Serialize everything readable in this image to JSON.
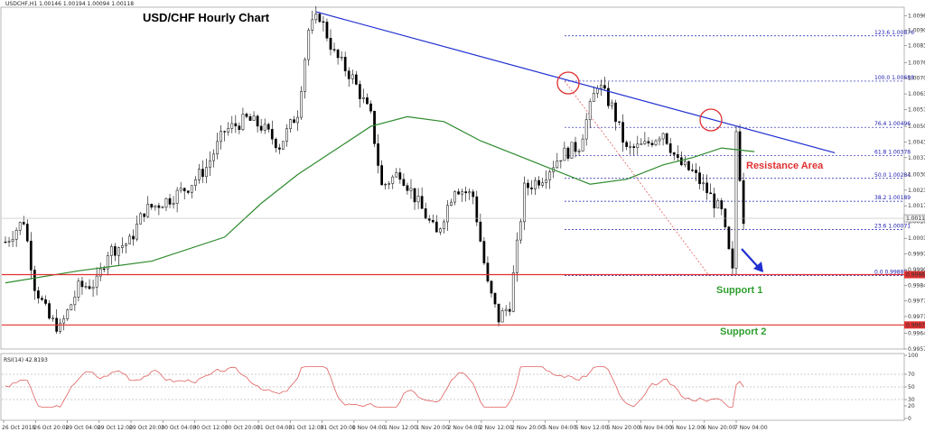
{
  "header": {
    "symbol_line": "USDCHF,H1  1.00146 1.00194 1.00094 1.00118"
  },
  "chart_data": {
    "type": "candlestick",
    "title": "USD/CHF Hourly Chart",
    "symbol": "USDCHF",
    "timeframe": "H1",
    "ohlc_header": {
      "open": 1.00146,
      "high": 1.00194,
      "low": 1.00094,
      "close": 1.00118
    },
    "y_ticks": [
      "1.00960",
      "1.00900",
      "1.00835",
      "1.00765",
      "1.00700",
      "1.00635",
      "1.00570",
      "1.00500",
      "1.00435",
      "1.00370",
      "1.00300",
      "1.00235",
      "1.00170",
      "1.00105",
      "1.00035",
      "0.99970",
      "0.99905",
      "0.99840",
      "0.99775",
      "0.99710",
      "0.99640",
      "0.99575"
    ],
    "ylim": [
      0.99575,
      1.00995
    ],
    "x_ticks": [
      "26 Oct 2018",
      "26 Oct 20:00",
      "29 Oct 04:00",
      "29 Oct 12:00",
      "29 Oct 20:00",
      "30 Oct 04:00",
      "30 Oct 12:00",
      "30 Oct 20:00",
      "31 Oct 04:00",
      "31 Oct 12:00",
      "31 Oct 20:00",
      "1 Nov 04:00",
      "1 Nov 12:00",
      "1 Nov 20:00",
      "2 Nov 04:00",
      "2 Nov 12:00",
      "2 Nov 20:00",
      "5 Nov 04:00",
      "5 Nov 12:00",
      "5 Nov 20:00",
      "6 Nov 04:00",
      "6 Nov 12:00",
      "6 Nov 20:00",
      "7 Nov 04:00"
    ],
    "current_price": "1.00118",
    "price_markers": [
      {
        "value": "0.99884",
        "color": "#e03030"
      },
      {
        "value": "0.99675",
        "color": "#e03030"
      }
    ],
    "fibonacci": [
      {
        "label": "123.6 1.00876",
        "value": 1.00876
      },
      {
        "label": "100.0 1.00688",
        "value": 1.00688
      },
      {
        "label": "76.4 1.00496",
        "value": 1.00496
      },
      {
        "label": "61.8 1.00378",
        "value": 1.00378
      },
      {
        "label": "50.0 1.00284",
        "value": 1.00284
      },
      {
        "label": "38.2 1.00189",
        "value": 1.00189
      },
      {
        "label": "23.6 1.00071",
        "value": 1.00071
      },
      {
        "label": "0.0 0.99880",
        "value": 0.9988
      }
    ],
    "support_levels": [
      {
        "label": "Support 1",
        "value": 0.99884
      },
      {
        "label": "Support 2",
        "value": 0.99675
      }
    ],
    "resistance_label": "Resistance Area",
    "trendline": {
      "from": {
        "bar": 85,
        "price": 1.00976
      },
      "to": {
        "bar": 227,
        "price": 1.0039
      }
    },
    "rsi": {
      "label": "RSI(14) 42.8193",
      "ticks": [
        "100",
        "70",
        "50",
        "30",
        "20",
        "0"
      ],
      "levels": [
        70,
        50,
        30
      ]
    },
    "bars": 200,
    "colors": {
      "up": "#ffffff",
      "down": "#000000",
      "wick": "#000000",
      "ma": "#2e8b2e",
      "trend": "#1f2fd0",
      "support": "#e03030",
      "rsi": "#e06060",
      "annotation": "#e03030",
      "arrow": "#1f2fd0"
    },
    "anchors": [
      [
        0,
        1.0002
      ],
      [
        5,
        1.0011
      ],
      [
        8,
        0.9984
      ],
      [
        12,
        0.997
      ],
      [
        15,
        0.9966
      ],
      [
        20,
        0.9983
      ],
      [
        25,
        0.9985
      ],
      [
        28,
        0.9998
      ],
      [
        34,
        1.0002
      ],
      [
        38,
        1.0015
      ],
      [
        45,
        1.002
      ],
      [
        50,
        1.0025
      ],
      [
        55,
        1.0033
      ],
      [
        60,
        1.0048
      ],
      [
        66,
        1.0053
      ],
      [
        70,
        1.005
      ],
      [
        75,
        1.0042
      ],
      [
        80,
        1.0056
      ],
      [
        83,
        1.009
      ],
      [
        86,
        1.0096
      ],
      [
        90,
        1.008
      ],
      [
        95,
        1.007
      ],
      [
        100,
        1.0054
      ],
      [
        103,
        1.0025
      ],
      [
        108,
        1.0031
      ],
      [
        113,
        1.0018
      ],
      [
        118,
        1.0005
      ],
      [
        123,
        1.0025
      ],
      [
        128,
        1.0021
      ],
      [
        132,
        0.9984
      ],
      [
        135,
        0.997
      ],
      [
        138,
        0.9976
      ],
      [
        142,
        1.0024
      ],
      [
        147,
        1.0029
      ],
      [
        152,
        1.0038
      ],
      [
        157,
        1.0042
      ],
      [
        162,
        1.0068
      ],
      [
        166,
        1.0058
      ],
      [
        170,
        1.004
      ],
      [
        175,
        1.0042
      ],
      [
        180,
        1.0048
      ],
      [
        184,
        1.0035
      ],
      [
        188,
        1.0031
      ],
      [
        192,
        1.0023
      ],
      [
        196,
        1.0014
      ],
      [
        199,
        0.9989
      ],
      [
        200,
        1.0048
      ],
      [
        202,
        1.00118
      ]
    ],
    "ma_points": [
      [
        0,
        0.9985
      ],
      [
        20,
        0.999
      ],
      [
        40,
        0.9994
      ],
      [
        60,
        1.0004
      ],
      [
        70,
        1.0018
      ],
      [
        80,
        1.003
      ],
      [
        90,
        1.004
      ],
      [
        100,
        1.005
      ],
      [
        110,
        1.0054
      ],
      [
        120,
        1.0052
      ],
      [
        130,
        1.0044
      ],
      [
        140,
        1.0038
      ],
      [
        150,
        1.0032
      ],
      [
        160,
        1.0026
      ],
      [
        170,
        1.0028
      ],
      [
        180,
        1.0034
      ],
      [
        188,
        1.0037
      ],
      [
        196,
        1.0041
      ],
      [
        205,
        1.00395
      ]
    ]
  }
}
